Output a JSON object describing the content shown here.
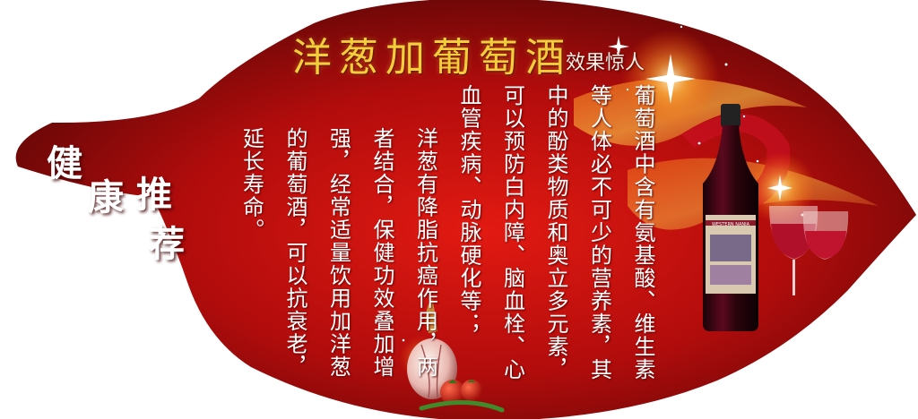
{
  "poster": {
    "title": "洋葱加葡萄酒",
    "subtitle": "效果惊人",
    "badge": [
      "健",
      "康",
      "推",
      "荐"
    ],
    "paragraphs": [
      "葡萄酒中含有氨基酸、维生素等人体必不可少的营养素，其中的酚类物质和奥立多元素，可以预防白内障、脑血栓、心血管疾病、动脉硬化等；",
      "洋葱有降脂抗癌作用，两者结合，保健功效叠加增强，经常适量饮用加洋葱的葡萄酒，可以抗衰老，延长寿命。"
    ],
    "wine_label": "WESTERN NANIA"
  },
  "colors": {
    "leaf_center": "#e21a12",
    "leaf_edge": "#5a0606",
    "title_gold": "#f2cf3a",
    "wine": "#8a0a28"
  },
  "icons": [
    "wine-bottle-icon",
    "wine-glass-icon",
    "onion-icon",
    "tomato-icon",
    "sparkle-icon"
  ]
}
